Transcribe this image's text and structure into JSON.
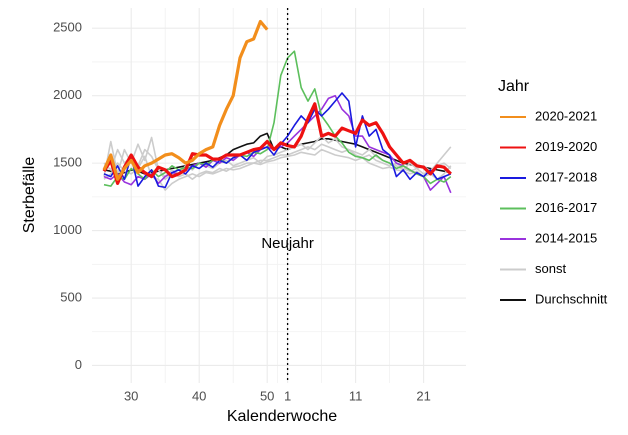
{
  "chart_data": {
    "type": "line",
    "xlabel": "Kalenderwoche",
    "ylabel": "Sterbefälle",
    "legend_title": "Jahr",
    "legend": "right",
    "grid": true,
    "categories": [
      null,
      null,
      null,
      null,
      "30",
      null,
      null,
      null,
      null,
      null,
      null,
      null,
      null,
      null,
      "40",
      null,
      null,
      null,
      null,
      null,
      null,
      null,
      null,
      null,
      "50",
      null,
      null,
      "1",
      null,
      null,
      null,
      null,
      null,
      null,
      null,
      null,
      null,
      "11",
      null,
      null,
      null,
      null,
      null,
      null,
      null,
      null,
      null,
      "21",
      null,
      null,
      null,
      null
    ],
    "ylim": [
      -130,
      2650
    ],
    "yticks": [
      0,
      500,
      1000,
      1500,
      2000,
      2500
    ],
    "annotation": {
      "label": "Neujahr",
      "x": "1",
      "y": 900
    },
    "series": [
      {
        "name": "2020-2021",
        "color": "#f28e1c",
        "linewidth": 3.2,
        "values": [
          1450,
          1560,
          1380,
          1460,
          1520,
          1430,
          1480,
          1500,
          1530,
          1560,
          1570,
          1540,
          1500,
          1520,
          1570,
          1600,
          1620,
          1780,
          1900,
          2000,
          2280,
          2400,
          2420,
          2550,
          2490,
          null,
          null,
          null,
          null,
          null,
          null,
          null,
          null,
          null,
          null,
          null,
          null,
          null,
          null,
          null,
          null,
          null,
          null,
          null,
          null,
          null,
          null,
          null,
          null,
          null,
          null,
          null
        ]
      },
      {
        "name": "2019-2020",
        "color": "#ee1111",
        "linewidth": 3.2,
        "values": [
          1440,
          1520,
          1350,
          1470,
          1560,
          1470,
          1430,
          1400,
          1470,
          1450,
          1400,
          1420,
          1450,
          1570,
          1560,
          1560,
          1530,
          1530,
          1560,
          1560,
          1560,
          1580,
          1600,
          1610,
          1660,
          1600,
          1650,
          1630,
          1620,
          1700,
          1830,
          1940,
          1700,
          1720,
          1700,
          1760,
          1740,
          1720,
          1820,
          1780,
          1800,
          1720,
          1620,
          1560,
          1500,
          1520,
          1480,
          1470,
          1420,
          1480,
          1470,
          1420
        ]
      },
      {
        "name": "2017-2018",
        "color": "#1a1adf",
        "linewidth": 1.6,
        "values": [
          1420,
          1400,
          1480,
          1380,
          1550,
          1330,
          1400,
          1450,
          1330,
          1320,
          1430,
          1450,
          1420,
          1480,
          1460,
          1500,
          1470,
          1520,
          1500,
          1540,
          1560,
          1520,
          1580,
          1600,
          1620,
          1560,
          1640,
          1700,
          1780,
          1850,
          1800,
          1900,
          1850,
          1900,
          1960,
          2020,
          1960,
          1620,
          1850,
          1700,
          1750,
          1600,
          1560,
          1400,
          1450,
          1380,
          1430,
          1400,
          1450,
          1380,
          1400,
          1420
        ]
      },
      {
        "name": "2016-2017",
        "color": "#5cbf5c",
        "linewidth": 1.6,
        "values": [
          1340,
          1330,
          1400,
          1380,
          1460,
          1420,
          1380,
          1450,
          1400,
          1430,
          1480,
          1450,
          1470,
          1460,
          1500,
          1490,
          1520,
          1530,
          1500,
          1540,
          1560,
          1550,
          1580,
          1570,
          1600,
          1800,
          2150,
          2280,
          2330,
          2060,
          1960,
          2050,
          1850,
          1780,
          1700,
          1650,
          1580,
          1550,
          1540,
          1520,
          1560,
          1520,
          1500,
          1460,
          1480,
          1450,
          1420,
          1400,
          1350,
          1380,
          1360,
          1400
        ]
      },
      {
        "name": "2014-2015",
        "color": "#9933dd",
        "linewidth": 1.6,
        "values": [
          1400,
          1380,
          1420,
          1360,
          1340,
          1400,
          1380,
          1420,
          1350,
          1400,
          1430,
          1420,
          1450,
          1480,
          1500,
          1470,
          1520,
          1500,
          1540,
          1520,
          1560,
          1580,
          1550,
          1600,
          1620,
          1600,
          1620,
          1650,
          1700,
          1750,
          1800,
          1850,
          1900,
          1980,
          2000,
          1900,
          1850,
          1700,
          1700,
          1620,
          1600,
          1580,
          1560,
          1500,
          1480,
          1450,
          1420,
          1400,
          1300,
          1350,
          1400,
          1280
        ]
      },
      {
        "name": "sonst",
        "color": "#cccccc",
        "linewidth": 1.6,
        "values": [
          1500,
          1450,
          1600,
          1500,
          1550,
          1480,
          1600,
          1550,
          1450,
          1400,
          1450,
          1420,
          1480,
          1450,
          1500,
          1480,
          1460,
          1500,
          1520,
          1480,
          1500,
          1520,
          1540,
          1500,
          1550,
          1560,
          1580,
          1600,
          1620,
          1640,
          1600,
          1650,
          1700,
          1650,
          1680,
          1620,
          1600,
          1580,
          1560,
          1600,
          1550,
          1520,
          1500,
          1480,
          1450,
          1500,
          1460,
          1480,
          1440,
          1500,
          1560,
          1620
        ]
      },
      {
        "name": "sonst",
        "color": "#cccccc",
        "linewidth": 1.6,
        "values": [
          1400,
          1660,
          1420,
          1600,
          1500,
          1640,
          1520,
          1690,
          1450,
          1380,
          1420,
          1400,
          1420,
          1380,
          1420,
          1440,
          1430,
          1460,
          1440,
          1470,
          1480,
          1500,
          1500,
          1520,
          1520,
          1540,
          1560,
          1560,
          1580,
          1600,
          1620,
          1600,
          1640,
          1620,
          1600,
          1580,
          1600,
          1560,
          1540,
          1560,
          1520,
          1500,
          1480,
          1500,
          1460,
          1440,
          1460,
          1420,
          1450,
          1480,
          1500,
          1460
        ]
      },
      {
        "name": "sonst",
        "color": "#cccccc",
        "linewidth": 1.6,
        "values": [
          1380,
          1420,
          1500,
          1440,
          1420,
          1460,
          1550,
          1400,
          1380,
          1300,
          1350,
          1380,
          1400,
          1420,
          1400,
          1430,
          1420,
          1440,
          1460,
          1450,
          1460,
          1480,
          1500,
          1490,
          1510,
          1520,
          1540,
          1550,
          1560,
          1580,
          1570,
          1560,
          1600,
          1580,
          1560,
          1550,
          1540,
          1520,
          1540,
          1500,
          1480,
          1460,
          1470,
          1450,
          1440,
          1420,
          1440,
          1400,
          1420,
          1380,
          1420,
          1480
        ]
      },
      {
        "name": "Durchschnitt",
        "color": "#111111",
        "linewidth": 1.6,
        "values": [
          1450,
          1440,
          1420,
          1430,
          1450,
          1440,
          1420,
          1430,
          1440,
          1450,
          1460,
          1470,
          1480,
          1490,
          1500,
          1510,
          1520,
          1540,
          1560,
          1600,
          1620,
          1640,
          1650,
          1700,
          1720,
          1600,
          1620,
          1600,
          1620,
          1640,
          1650,
          1660,
          1680,
          1680,
          1670,
          1660,
          1650,
          1640,
          1620,
          1600,
          1580,
          1560,
          1540,
          1520,
          1500,
          1490,
          1480,
          1470,
          1460,
          1450,
          1440,
          1430
        ]
      }
    ]
  }
}
